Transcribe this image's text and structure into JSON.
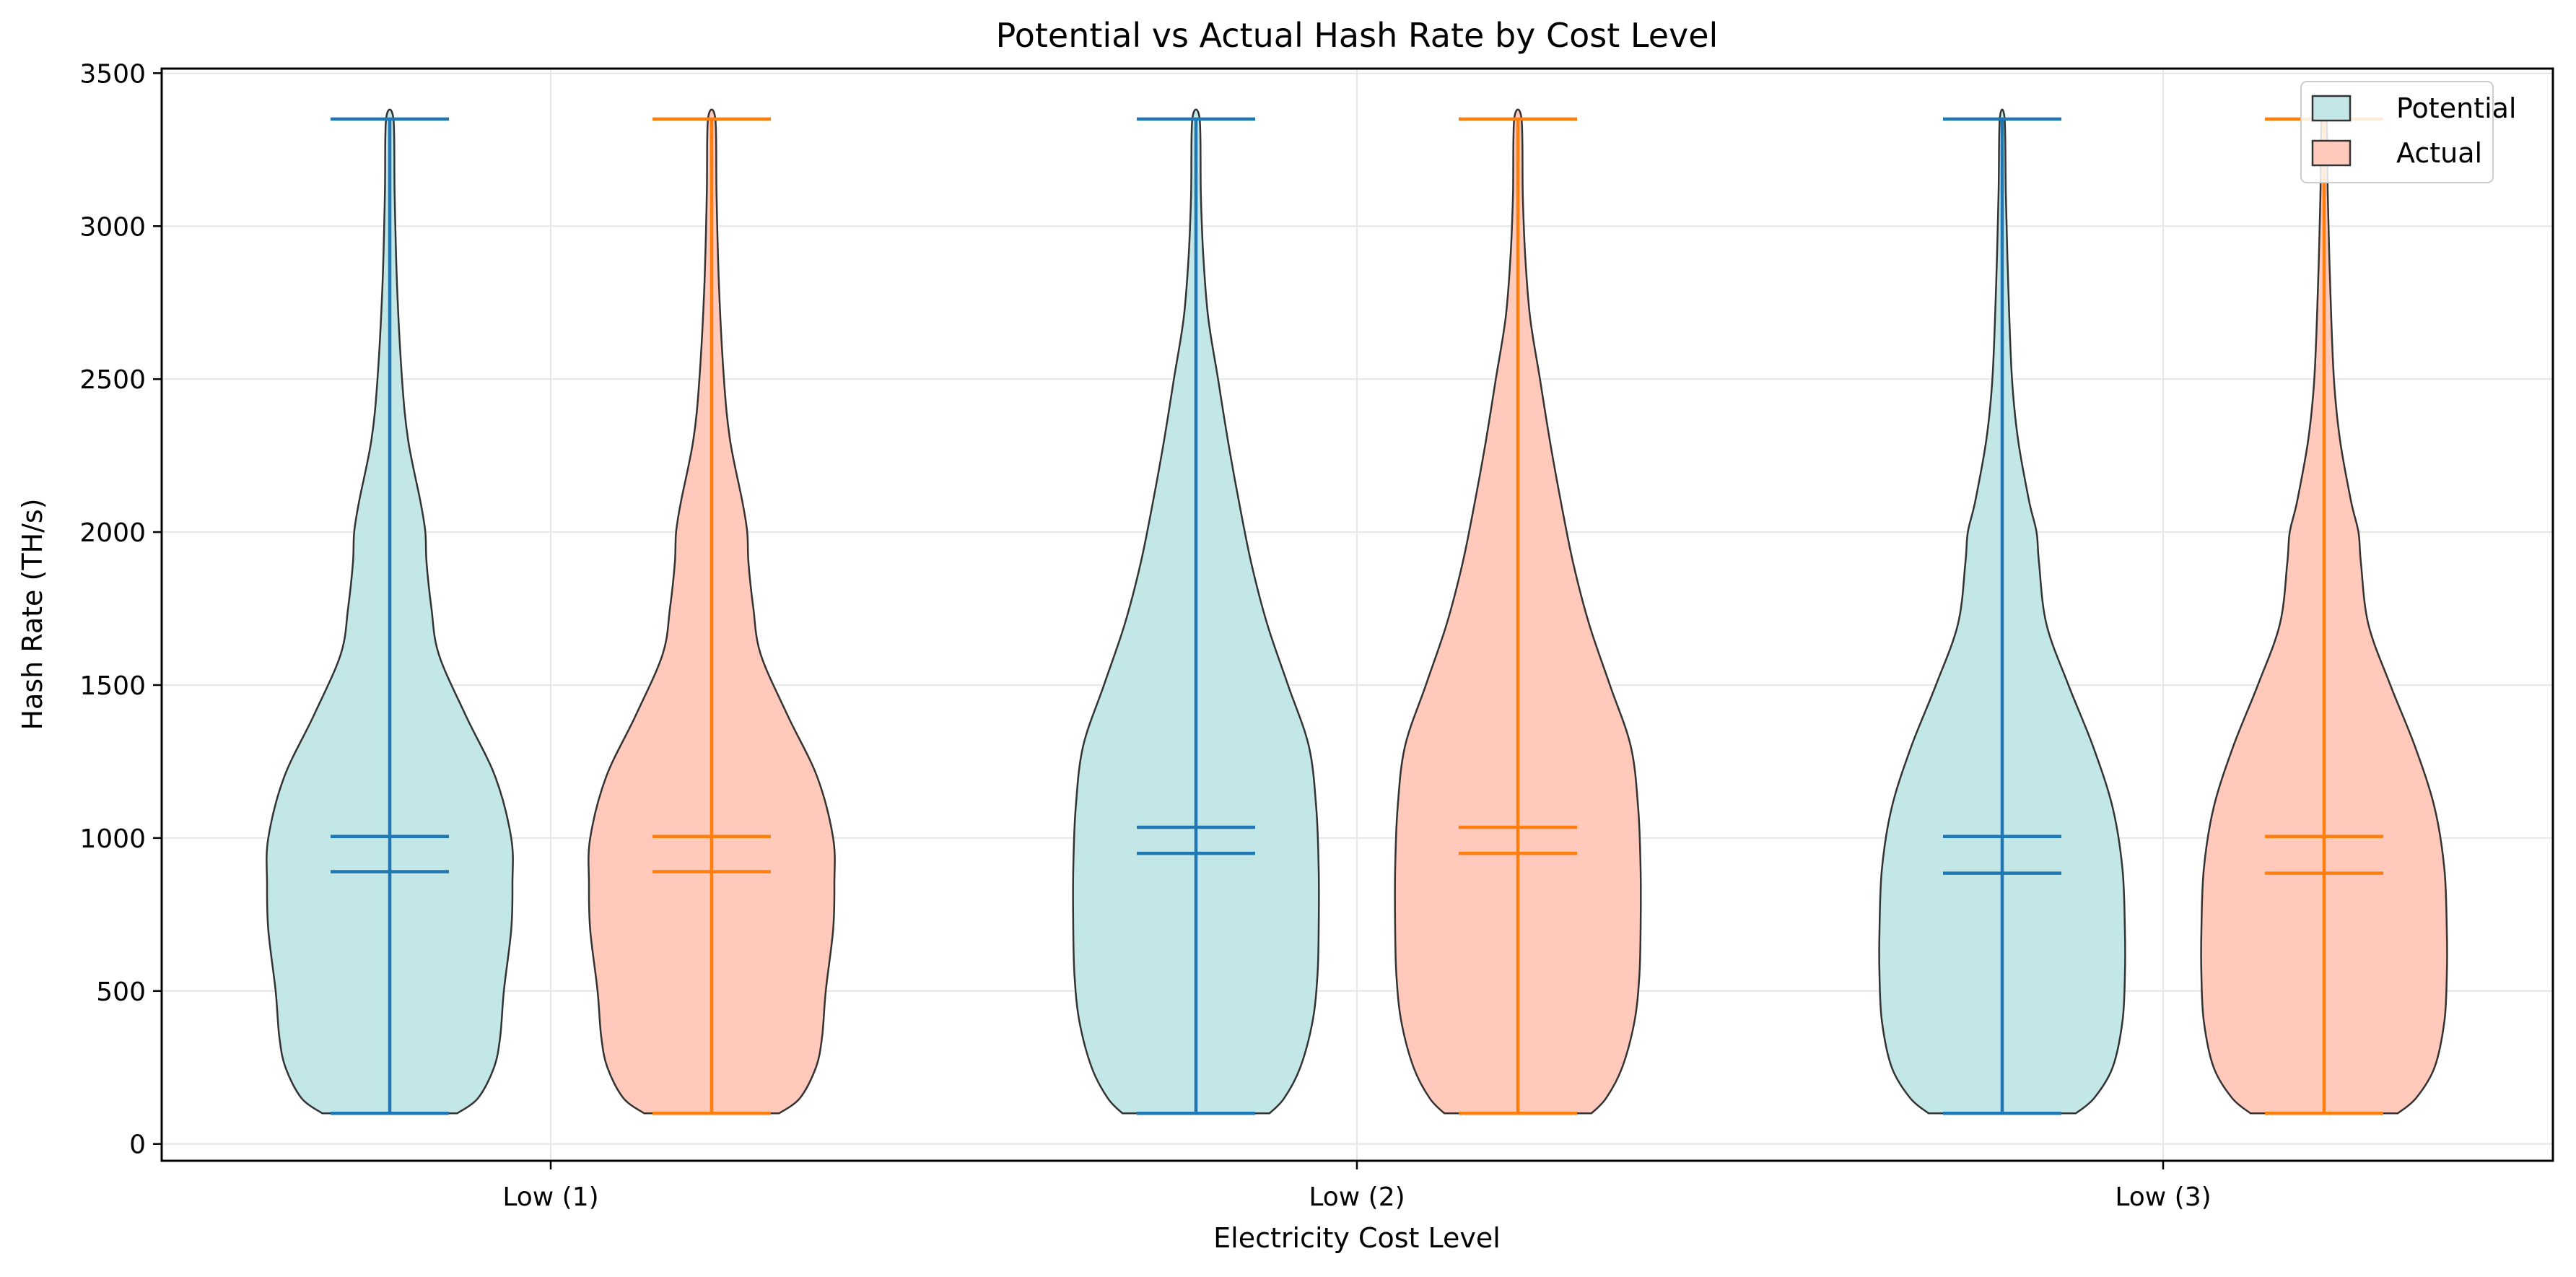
{
  "chart_data": {
    "type": "violin",
    "title": "Potential vs Actual Hash Rate by Cost Level",
    "xlabel": "Electricity Cost Level",
    "ylabel": "Hash Rate (TH/s)",
    "categories": [
      "Low (1)",
      "Low (2)",
      "Low (3)"
    ],
    "ylim": [
      -55,
      3515
    ],
    "yticks": [
      0,
      500,
      1000,
      1500,
      2000,
      2500,
      3000,
      3500
    ],
    "grid": true,
    "legend": {
      "position": "top-right",
      "entries": [
        "Potential",
        "Actual"
      ]
    },
    "series": [
      {
        "name": "Potential",
        "fill_color": "#c3e6e6",
        "line_color": "#1f77b4",
        "stats": [
          {
            "category": "Low (1)",
            "min": 100,
            "max": 3350,
            "mean": 1005,
            "median": 890
          },
          {
            "category": "Low (2)",
            "min": 100,
            "max": 3350,
            "mean": 1035,
            "median": 950
          },
          {
            "category": "Low (3)",
            "min": 100,
            "max": 3350,
            "mean": 1005,
            "median": 885
          }
        ]
      },
      {
        "name": "Actual",
        "fill_color": "#ffc9bb",
        "line_color": "#ff7f0e",
        "stats": [
          {
            "category": "Low (1)",
            "min": 100,
            "max": 3350,
            "mean": 1005,
            "median": 890
          },
          {
            "category": "Low (2)",
            "min": 100,
            "max": 3350,
            "mean": 1035,
            "median": 950
          },
          {
            "category": "Low (3)",
            "min": 100,
            "max": 3350,
            "mean": 1005,
            "median": 885
          }
        ]
      }
    ],
    "density_profiles": [
      {
        "category": "Low (1)",
        "points": [
          [
            100,
            0.55
          ],
          [
            150,
            0.72
          ],
          [
            250,
            0.85
          ],
          [
            350,
            0.9
          ],
          [
            500,
            0.93
          ],
          [
            700,
            0.99
          ],
          [
            850,
            1.0
          ],
          [
            1000,
            0.99
          ],
          [
            1200,
            0.86
          ],
          [
            1400,
            0.62
          ],
          [
            1600,
            0.4
          ],
          [
            1750,
            0.34
          ],
          [
            1900,
            0.3
          ],
          [
            2000,
            0.29
          ],
          [
            2100,
            0.25
          ],
          [
            2300,
            0.15
          ],
          [
            2500,
            0.1
          ],
          [
            2800,
            0.06
          ],
          [
            3100,
            0.04
          ],
          [
            3350,
            0.03
          ]
        ]
      },
      {
        "category": "Low (2)",
        "points": [
          [
            100,
            0.6
          ],
          [
            150,
            0.72
          ],
          [
            250,
            0.85
          ],
          [
            400,
            0.95
          ],
          [
            550,
            0.99
          ],
          [
            700,
            1.0
          ],
          [
            900,
            1.0
          ],
          [
            1100,
            0.98
          ],
          [
            1300,
            0.92
          ],
          [
            1500,
            0.75
          ],
          [
            1700,
            0.58
          ],
          [
            1900,
            0.45
          ],
          [
            2100,
            0.35
          ],
          [
            2300,
            0.26
          ],
          [
            2500,
            0.18
          ],
          [
            2700,
            0.1
          ],
          [
            2900,
            0.06
          ],
          [
            3100,
            0.04
          ],
          [
            3350,
            0.03
          ]
        ]
      },
      {
        "category": "Low (3)",
        "points": [
          [
            100,
            0.6
          ],
          [
            150,
            0.75
          ],
          [
            250,
            0.9
          ],
          [
            400,
            0.98
          ],
          [
            550,
            1.0
          ],
          [
            700,
            1.0
          ],
          [
            900,
            0.98
          ],
          [
            1100,
            0.9
          ],
          [
            1300,
            0.74
          ],
          [
            1500,
            0.54
          ],
          [
            1700,
            0.36
          ],
          [
            1900,
            0.3
          ],
          [
            2000,
            0.28
          ],
          [
            2100,
            0.22
          ],
          [
            2300,
            0.13
          ],
          [
            2500,
            0.08
          ],
          [
            2800,
            0.05
          ],
          [
            3100,
            0.03
          ],
          [
            3350,
            0.02
          ]
        ]
      }
    ]
  }
}
